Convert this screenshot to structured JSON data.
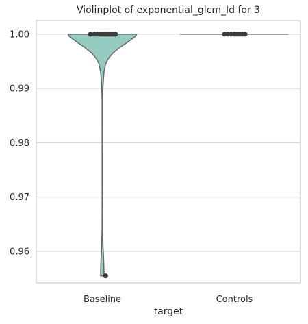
{
  "chart_data": {
    "type": "violin",
    "title": "Violinplot of exponential_glcm_Id for 3",
    "xlabel": "target",
    "ylabel": "",
    "categories": [
      "Baseline",
      "Controls"
    ],
    "ylim": [
      0.9542,
      1.0025
    ],
    "yticks": [
      0.96,
      0.97,
      0.98,
      0.99,
      1.0
    ],
    "ytick_labels": [
      "0.96",
      "0.97",
      "0.98",
      "0.99",
      "1.00"
    ],
    "grid": "horizontal",
    "colors": {
      "Baseline": "#96cbc2",
      "Controls": "#96cbc2",
      "outline": "#666666",
      "points": "#3d3d3d",
      "grid": "#d3d3d3",
      "spine": "#cccccc"
    },
    "violins": [
      {
        "category": "Baseline",
        "profile": [
          {
            "y": 1.0,
            "half_width": 0.52
          },
          {
            "y": 0.9997,
            "half_width": 0.51
          },
          {
            "y": 0.9993,
            "half_width": 0.47
          },
          {
            "y": 0.9985,
            "half_width": 0.38
          },
          {
            "y": 0.9975,
            "half_width": 0.26
          },
          {
            "y": 0.9965,
            "half_width": 0.16
          },
          {
            "y": 0.9955,
            "half_width": 0.09
          },
          {
            "y": 0.9945,
            "half_width": 0.05
          },
          {
            "y": 0.993,
            "half_width": 0.025
          },
          {
            "y": 0.9905,
            "half_width": 0.01
          },
          {
            "y": 0.988,
            "half_width": 0.004
          },
          {
            "y": 0.97,
            "half_width": 0.003
          },
          {
            "y": 0.964,
            "half_width": 0.004
          },
          {
            "y": 0.961,
            "half_width": 0.01
          },
          {
            "y": 0.9585,
            "half_width": 0.02
          },
          {
            "y": 0.9565,
            "half_width": 0.025
          },
          {
            "y": 0.9555,
            "half_width": 0.025
          }
        ],
        "points": [
          1.0,
          1.0,
          1.0,
          1.0,
          1.0,
          1.0,
          1.0,
          1.0,
          1.0,
          1.0,
          1.0,
          1.0,
          0.9555
        ],
        "point_offsets": [
          -0.18,
          -0.12,
          -0.08,
          -0.04,
          0.0,
          0.03,
          0.06,
          0.09,
          0.12,
          0.15,
          0.18,
          0.2,
          0.05
        ]
      },
      {
        "category": "Controls",
        "profile": [
          {
            "y": 1.0,
            "half_width": 0.82
          }
        ],
        "points": [
          1.0,
          1.0,
          1.0,
          1.0,
          1.0,
          1.0,
          1.0,
          1.0,
          1.0
        ],
        "point_offsets": [
          -0.15,
          -0.1,
          -0.05,
          0.0,
          0.03,
          0.06,
          0.09,
          0.12,
          0.16
        ]
      }
    ]
  }
}
